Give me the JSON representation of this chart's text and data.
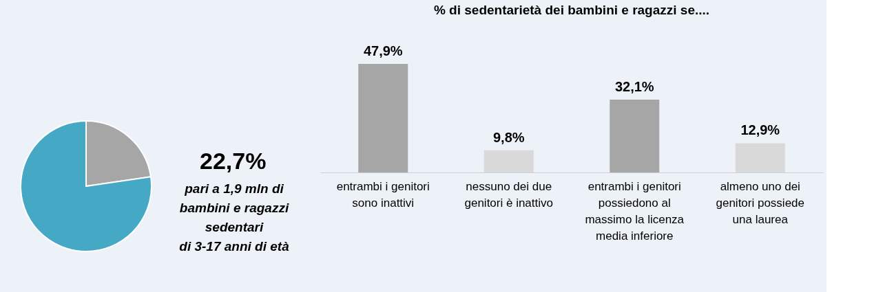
{
  "chart_data": [
    {
      "type": "pie",
      "categories": [
        null,
        null
      ],
      "values": [
        22.7,
        77.3
      ],
      "colors": [
        "#a6a6a6",
        "#45a9c6"
      ],
      "value_labels": [
        "22,7%",
        null
      ],
      "annotations": [
        "pari a 1,9 mln di\nbambini e ragazzi\nsedentari\ndi 3-17 anni di età"
      ]
    },
    {
      "type": "bar",
      "title": "% di sedentarietà dei bambini e ragazzi se....",
      "categories": [
        "entrambi i genitori sono inattivi",
        "nessuno dei due genitori è inattivo",
        "entrambi i genitori possiedono al massimo la licenza media inferiore",
        "almeno uno dei genitori possiede una laurea"
      ],
      "values": [
        47.9,
        9.8,
        32.1,
        12.9
      ],
      "colors": [
        "#a6a6a6",
        "#d9d9d9",
        "#a6a6a6",
        "#d9d9d9"
      ],
      "value_labels": [
        "47,9%",
        "9,8%",
        "32,1%",
        "12,9%"
      ]
    }
  ]
}
